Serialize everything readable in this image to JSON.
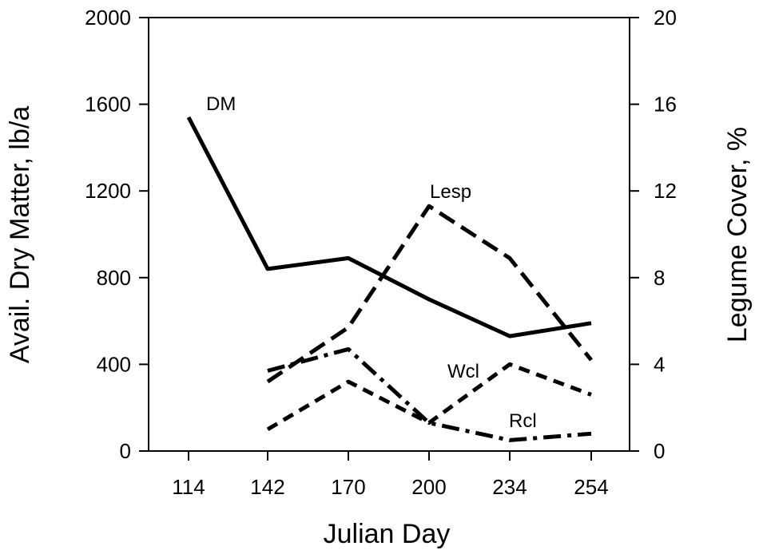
{
  "chart_data": {
    "type": "line",
    "x": [
      114,
      142,
      170,
      200,
      234,
      254
    ],
    "xlabel": "Julian Day",
    "ylabel_left": "Avail. Dry Matter, lb/a",
    "ylabel_right": "Legume Cover, %",
    "ylim_left": [
      0,
      2000
    ],
    "ylim_right": [
      0,
      20
    ],
    "yticks_left": [
      "0",
      "400",
      "800",
      "1200",
      "1600",
      "2000"
    ],
    "yticks_right": [
      "0",
      "4",
      "8",
      "12",
      "16",
      "20"
    ],
    "xticks": [
      "114",
      "142",
      "170",
      "200",
      "234",
      "254"
    ],
    "grid": false,
    "series": [
      {
        "name": "DM",
        "axis": "left",
        "style": "solid",
        "x": [
          114,
          142,
          170,
          200,
          234,
          254
        ],
        "values": [
          1540,
          840,
          890,
          700,
          530,
          590
        ]
      },
      {
        "name": "Lesp",
        "axis": "right",
        "style": "dashed",
        "x": [
          142,
          170,
          200,
          234,
          254
        ],
        "values": [
          3.2,
          5.7,
          11.3,
          8.9,
          4.2
        ]
      },
      {
        "name": "Wcl",
        "axis": "right",
        "style": "short-dashed",
        "x": [
          142,
          170,
          200,
          234,
          254
        ],
        "values": [
          1.0,
          3.2,
          1.3,
          4.0,
          2.6
        ]
      },
      {
        "name": "Rcl",
        "axis": "right",
        "style": "dash-dot",
        "x": [
          142,
          170,
          200,
          234,
          254
        ],
        "values": [
          3.7,
          4.7,
          1.3,
          0.5,
          0.8
        ]
      }
    ]
  }
}
